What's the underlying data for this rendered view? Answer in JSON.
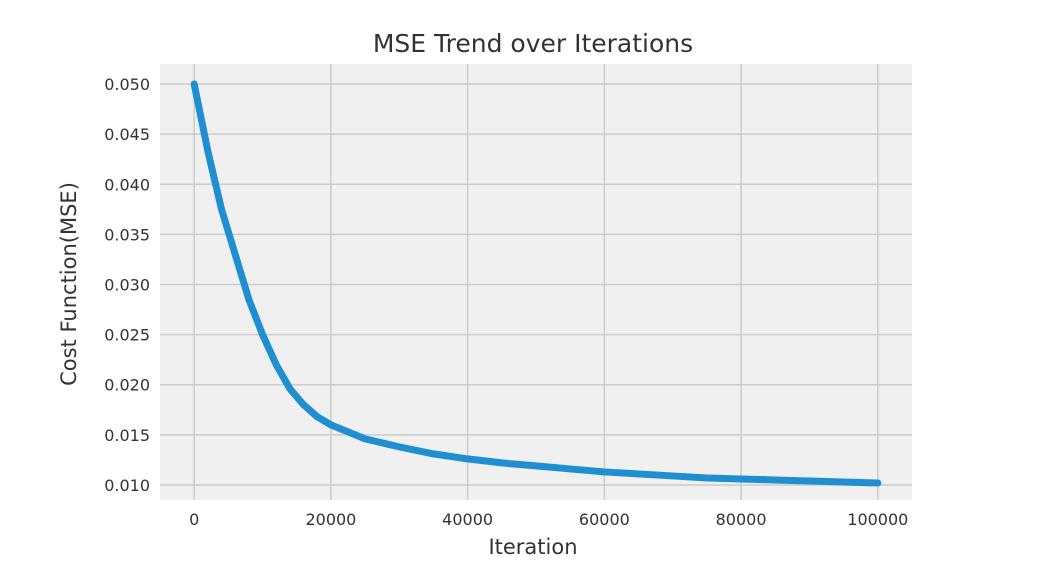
{
  "chart_data": {
    "type": "line",
    "title": "MSE Trend over Iterations",
    "xlabel": "Iteration",
    "ylabel": "Cost Function(MSE)",
    "xlim": [
      -5000,
      105000
    ],
    "ylim": [
      0.0085,
      0.052
    ],
    "xticks": [
      0,
      20000,
      40000,
      60000,
      80000,
      100000
    ],
    "xtick_labels": [
      "0",
      "20000",
      "40000",
      "60000",
      "80000",
      "100000"
    ],
    "yticks": [
      0.01,
      0.015,
      0.02,
      0.025,
      0.03,
      0.035,
      0.04,
      0.045,
      0.05
    ],
    "ytick_labels": [
      "0.010",
      "0.015",
      "0.020",
      "0.025",
      "0.030",
      "0.035",
      "0.040",
      "0.045",
      "0.050"
    ],
    "grid": true,
    "series": [
      {
        "color": "#1f8fd2",
        "x": [
          0,
          2000,
          4000,
          6000,
          8000,
          10000,
          12000,
          14000,
          16000,
          18000,
          20000,
          25000,
          30000,
          35000,
          40000,
          45000,
          50000,
          55000,
          60000,
          65000,
          70000,
          75000,
          80000,
          85000,
          90000,
          95000,
          100000
        ],
        "y": [
          0.05,
          0.0433,
          0.0375,
          0.033,
          0.0285,
          0.025,
          0.022,
          0.0196,
          0.018,
          0.0168,
          0.016,
          0.0146,
          0.0138,
          0.0131,
          0.0126,
          0.0122,
          0.0119,
          0.0116,
          0.0113,
          0.0111,
          0.0109,
          0.0107,
          0.0106,
          0.0105,
          0.0104,
          0.0103,
          0.0102
        ]
      }
    ]
  }
}
